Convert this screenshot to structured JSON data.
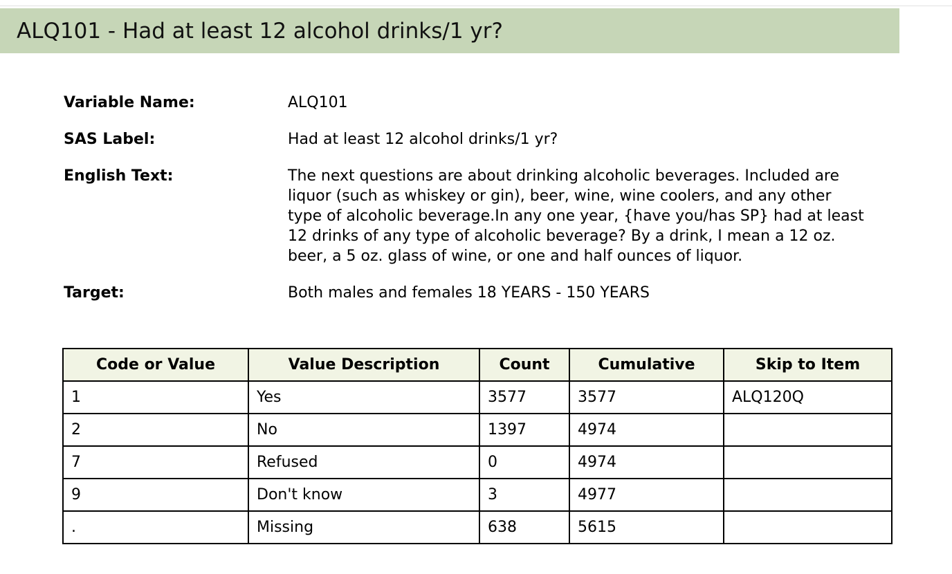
{
  "header": {
    "title": "ALQ101 - Had at least 12 alcohol drinks/1 yr?"
  },
  "variable": {
    "name_label": "Variable Name:",
    "name_value": "ALQ101",
    "sas_label": "SAS Label:",
    "sas_value": "Had at least 12 alcohol drinks/1 yr?",
    "english_label": "English Text:",
    "english_value": "The next questions are about drinking alcoholic beverages. Included are liquor (such as whiskey or gin), beer, wine, wine coolers, and any other type of alcoholic beverage.In any one year, {have you/has SP} had at least 12 drinks of any type of alcoholic beverage? By a drink, I mean a 12 oz. beer, a 5 oz. glass of wine, or one and half ounces of liquor.",
    "target_label": "Target:",
    "target_value": "Both males and females 18 YEARS - 150 YEARS"
  },
  "table": {
    "headers": [
      "Code or Value",
      "Value Description",
      "Count",
      "Cumulative",
      "Skip to Item"
    ],
    "rows": [
      [
        "1",
        "Yes",
        "3577",
        "3577",
        "ALQ120Q"
      ],
      [
        "2",
        "No",
        "1397",
        "4974",
        ""
      ],
      [
        "7",
        "Refused",
        "0",
        "4974",
        ""
      ],
      [
        "9",
        "Don't know",
        "3",
        "4977",
        ""
      ],
      [
        ".",
        "Missing",
        "638",
        "5615",
        ""
      ]
    ]
  }
}
